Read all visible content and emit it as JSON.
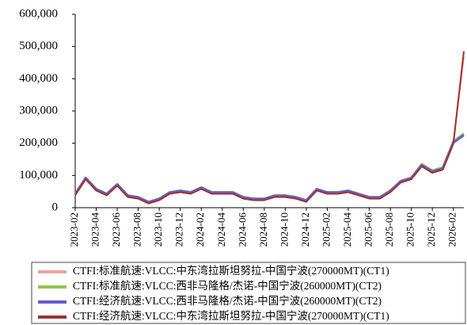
{
  "chart_data": {
    "type": "line",
    "x": [
      "2023-02",
      "2023-03",
      "2023-04",
      "2023-05",
      "2023-06",
      "2023-07",
      "2023-08",
      "2023-09",
      "2023-10",
      "2023-11",
      "2023-12",
      "2024-01",
      "2024-02",
      "2024-03",
      "2024-04",
      "2024-05",
      "2024-06",
      "2024-07",
      "2024-08",
      "2024-09",
      "2024-10",
      "2024-11",
      "2024-12",
      "2025-01",
      "2025-02",
      "2025-03",
      "2025-04",
      "2025-05",
      "2025-06",
      "2025-07",
      "2025-08",
      "2025-09",
      "2025-10",
      "2025-11",
      "2025-12",
      "2026-01",
      "2026-02",
      "2026-03"
    ],
    "series": [
      {
        "name": "CTFI:标准航速:VLCC:中东湾拉斯坦努拉-中国宁波(270000MT)(CT1)",
        "color": "#f2a0a0",
        "width": 2,
        "values": [
          40000,
          90000,
          55000,
          40000,
          70000,
          35000,
          30000,
          15000,
          25000,
          45000,
          50000,
          45000,
          60000,
          45000,
          45000,
          45000,
          30000,
          25000,
          25000,
          35000,
          35000,
          30000,
          20000,
          55000,
          45000,
          45000,
          50000,
          40000,
          30000,
          30000,
          50000,
          80000,
          90000,
          130000,
          110000,
          120000,
          200000,
          470000
        ]
      },
      {
        "name": "CTFI:标准航速:VLCC:西非马隆格/杰诺-中国宁波(260000MT)(CT2)",
        "color": "#8fc552",
        "width": 3,
        "values": [
          43000,
          93000,
          58000,
          43000,
          73000,
          38000,
          33000,
          18000,
          28000,
          48000,
          53000,
          48000,
          63000,
          48000,
          48000,
          48000,
          33000,
          28000,
          28000,
          38000,
          38000,
          33000,
          23000,
          58000,
          48000,
          48000,
          53000,
          43000,
          33000,
          33000,
          53000,
          83000,
          93000,
          135000,
          115000,
          125000,
          205000,
          230000
        ]
      },
      {
        "name": "CTFI:经济航速:VLCC:西非马隆格/杰诺-中国宁波(260000MT)(CT2)",
        "color": "#6a5acd",
        "width": 3,
        "values": [
          42000,
          92000,
          57000,
          42000,
          72000,
          37000,
          32000,
          17000,
          27000,
          47000,
          52000,
          47000,
          62000,
          47000,
          47000,
          47000,
          32000,
          27000,
          27000,
          37000,
          37000,
          32000,
          22000,
          57000,
          47000,
          47000,
          52000,
          42000,
          32000,
          32000,
          52000,
          82000,
          92000,
          132000,
          112000,
          122000,
          202000,
          225000
        ]
      },
      {
        "name": "CTFI:经济航速:VLCC:中东湾拉斯坦努拉-中国宁波(270000MT)(CT1)",
        "color": "#a0302f",
        "width": 2,
        "values": [
          38000,
          88000,
          53000,
          38000,
          68000,
          33000,
          28000,
          13000,
          23000,
          43000,
          48000,
          43000,
          58000,
          43000,
          43000,
          43000,
          28000,
          23000,
          23000,
          33000,
          33000,
          28000,
          18000,
          53000,
          43000,
          43000,
          48000,
          38000,
          28000,
          28000,
          48000,
          78000,
          88000,
          128000,
          108000,
          118000,
          198000,
          485000
        ]
      }
    ],
    "xlim": [
      "2023-02",
      "2026-03"
    ],
    "xticks": [
      "2023-02",
      "2023-04",
      "2023-06",
      "2023-08",
      "2023-10",
      "2023-12",
      "2024-02",
      "2024-04",
      "2024-06",
      "2024-08",
      "2024-10",
      "2024-12",
      "2025-02",
      "2025-04",
      "2025-06",
      "2025-08",
      "2025-10",
      "2025-12",
      "2026-02"
    ],
    "ylim": [
      0,
      600000
    ],
    "yticks": [
      0,
      {
        "value": 100000,
        "label": "100,000"
      },
      {
        "value": 200000,
        "label": "200,000"
      },
      {
        "value": 300000,
        "label": "300,000"
      },
      {
        "value": 400000,
        "label": "400,000"
      },
      {
        "value": 500000,
        "label": "500,000"
      },
      {
        "value": 600000,
        "label": "600,000"
      }
    ]
  }
}
